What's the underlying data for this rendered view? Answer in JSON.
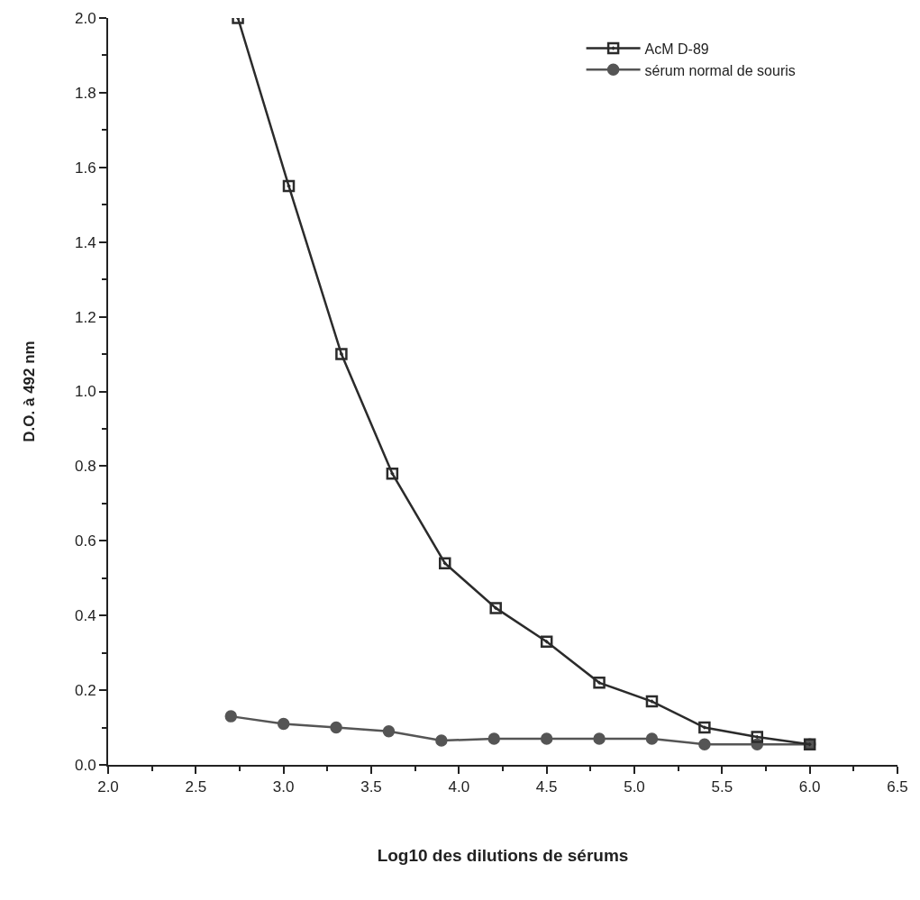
{
  "chart_data": {
    "type": "line",
    "xlabel": "Log10 des dilutions de sérums",
    "ylabel": "D.O. à 492 nm",
    "xlim": [
      2.0,
      6.5
    ],
    "xticks": [
      {
        "value": 2,
        "label": "2.0"
      },
      2.5,
      {
        "value": 3,
        "label": "3.0"
      },
      3.5,
      {
        "value": 4,
        "label": "4.0"
      },
      4.5,
      {
        "value": 5,
        "label": "5.0"
      },
      5.5,
      {
        "value": 6,
        "label": "6.0"
      },
      6.5
    ],
    "ylim": [
      0.0,
      2.0
    ],
    "yticks": [
      {
        "value": 0,
        "label": "0.0"
      },
      0.2,
      0.4,
      0.6,
      0.8,
      {
        "value": 1,
        "label": "1.0"
      },
      1.2,
      1.4,
      1.6,
      1.8,
      {
        "value": 2,
        "label": "2.0"
      }
    ],
    "legend": "top right",
    "line_style": "solid",
    "series": [
      {
        "name": "AcM D-89",
        "color": "#2b2b2b",
        "marker": "square",
        "x": [
          2.74,
          3.03,
          3.33,
          3.62,
          3.92,
          4.21,
          4.5,
          4.8,
          5.1,
          5.4,
          5.7,
          6.0
        ],
        "values": [
          2.0,
          1.55,
          1.1,
          0.78,
          0.54,
          0.42,
          0.33,
          0.22,
          0.17,
          0.1,
          0.075,
          0.055
        ]
      },
      {
        "name": "sérum normal de souris",
        "color": "#555555",
        "marker": "circle",
        "x": [
          2.7,
          3.0,
          3.3,
          3.6,
          3.9,
          4.2,
          4.5,
          4.8,
          5.1,
          5.4,
          5.7,
          6.0
        ],
        "values": [
          0.13,
          0.11,
          0.1,
          0.09,
          0.065,
          0.07,
          0.07,
          0.07,
          0.07,
          0.055,
          0.055,
          0.055
        ]
      }
    ]
  }
}
